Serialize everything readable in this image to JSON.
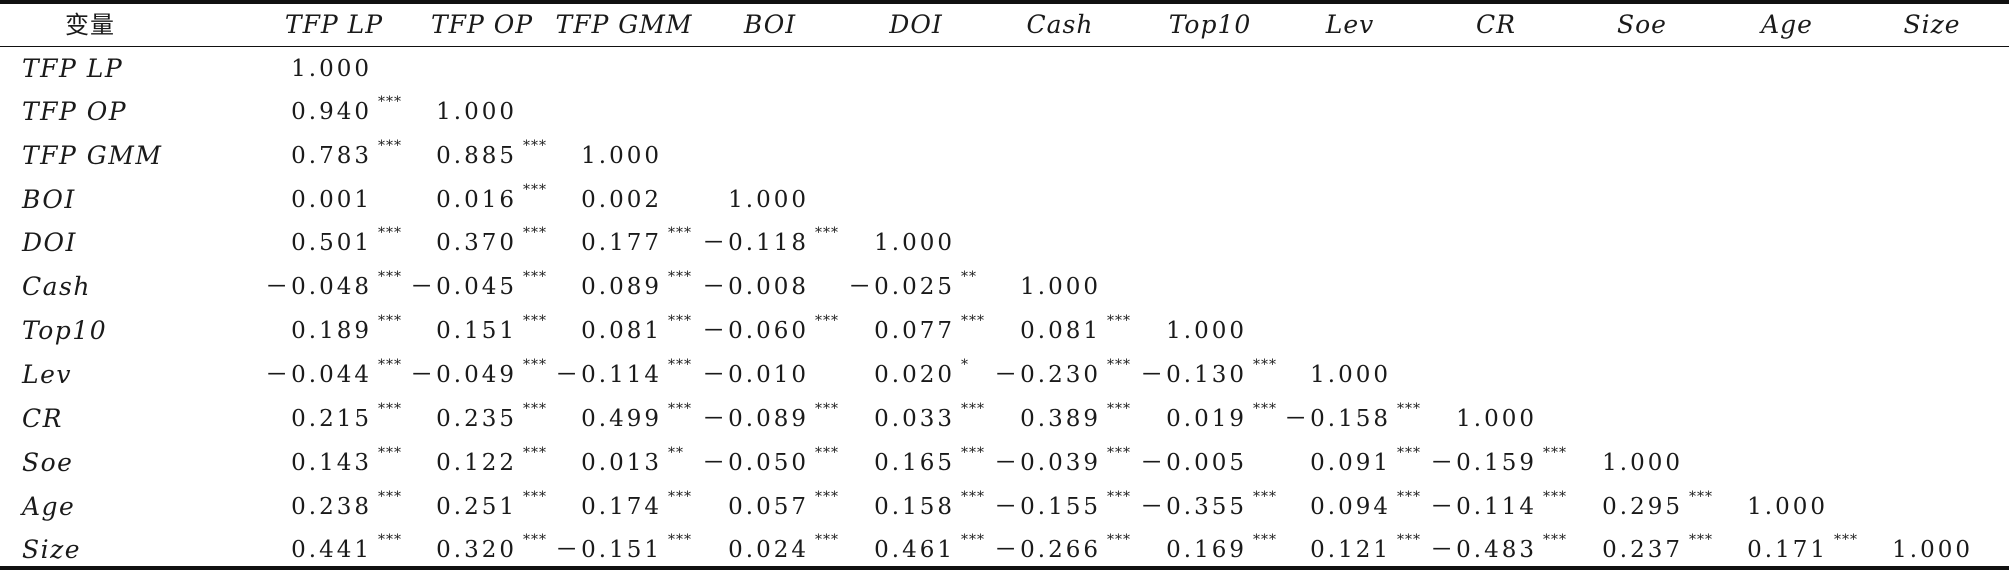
{
  "headers": [
    "变量",
    "TFP LP",
    "TFP OP",
    "TFP GMM",
    "BOI",
    "DOI",
    "Cash",
    "Top10",
    "Lev",
    "CR",
    "Soe",
    "Age",
    "Size"
  ],
  "rows": [
    {
      "label": "TFP LP",
      "cells": [
        [
          "1.000",
          ""
        ]
      ]
    },
    {
      "label": "TFP OP",
      "cells": [
        [
          "0.940",
          "***"
        ],
        [
          "1.000",
          ""
        ]
      ]
    },
    {
      "label": "TFP GMM",
      "cells": [
        [
          "0.783",
          "***"
        ],
        [
          "0.885",
          "***"
        ],
        [
          "1.000",
          ""
        ]
      ]
    },
    {
      "label": "BOI",
      "cells": [
        [
          "0.001",
          ""
        ],
        [
          "0.016",
          "***"
        ],
        [
          "0.002",
          ""
        ],
        [
          "1.000",
          ""
        ]
      ]
    },
    {
      "label": "DOI",
      "cells": [
        [
          "0.501",
          "***"
        ],
        [
          "0.370",
          "***"
        ],
        [
          "0.177",
          "***"
        ],
        [
          "－0.118",
          "***"
        ],
        [
          "1.000",
          ""
        ]
      ]
    },
    {
      "label": "Cash",
      "cells": [
        [
          "－0.048",
          "***"
        ],
        [
          "－0.045",
          "***"
        ],
        [
          "0.089",
          "***"
        ],
        [
          "－0.008",
          ""
        ],
        [
          "－0.025",
          "**"
        ],
        [
          "1.000",
          ""
        ]
      ]
    },
    {
      "label": "Top10",
      "cells": [
        [
          "0.189",
          "***"
        ],
        [
          "0.151",
          "***"
        ],
        [
          "0.081",
          "***"
        ],
        [
          "－0.060",
          "***"
        ],
        [
          "0.077",
          "***"
        ],
        [
          "0.081",
          "***"
        ],
        [
          "1.000",
          ""
        ]
      ]
    },
    {
      "label": "Lev",
      "cells": [
        [
          "－0.044",
          "***"
        ],
        [
          "－0.049",
          "***"
        ],
        [
          "－0.114",
          "***"
        ],
        [
          "－0.010",
          ""
        ],
        [
          "0.020",
          "*"
        ],
        [
          "－0.230",
          "***"
        ],
        [
          "－0.130",
          "***"
        ],
        [
          "1.000",
          ""
        ]
      ]
    },
    {
      "label": "CR",
      "cells": [
        [
          "0.215",
          "***"
        ],
        [
          "0.235",
          "***"
        ],
        [
          "0.499",
          "***"
        ],
        [
          "－0.089",
          "***"
        ],
        [
          "0.033",
          "***"
        ],
        [
          "0.389",
          "***"
        ],
        [
          "0.019",
          "***"
        ],
        [
          "－0.158",
          "***"
        ],
        [
          "1.000",
          ""
        ]
      ]
    },
    {
      "label": "Soe",
      "cells": [
        [
          "0.143",
          "***"
        ],
        [
          "0.122",
          "***"
        ],
        [
          "0.013",
          "**"
        ],
        [
          "－0.050",
          "***"
        ],
        [
          "0.165",
          "***"
        ],
        [
          "－0.039",
          "***"
        ],
        [
          "－0.005",
          ""
        ],
        [
          "0.091",
          "***"
        ],
        [
          "－0.159",
          "***"
        ],
        [
          "1.000",
          ""
        ]
      ]
    },
    {
      "label": "Age",
      "cells": [
        [
          "0.238",
          "***"
        ],
        [
          "0.251",
          "***"
        ],
        [
          "0.174",
          "***"
        ],
        [
          "0.057",
          "***"
        ],
        [
          "0.158",
          "***"
        ],
        [
          "－0.155",
          "***"
        ],
        [
          "－0.355",
          "***"
        ],
        [
          "0.094",
          "***"
        ],
        [
          "－0.114",
          "***"
        ],
        [
          "0.295",
          "***"
        ],
        [
          "1.000",
          ""
        ]
      ]
    },
    {
      "label": "Size",
      "cells": [
        [
          "0.441",
          "***"
        ],
        [
          "0.320",
          "***"
        ],
        [
          "－0.151",
          "***"
        ],
        [
          "0.024",
          "***"
        ],
        [
          "0.461",
          "***"
        ],
        [
          "－0.266",
          "***"
        ],
        [
          "0.169",
          "***"
        ],
        [
          "0.121",
          "***"
        ],
        [
          "－0.483",
          "***"
        ],
        [
          "0.237",
          "***"
        ],
        [
          "0.171",
          "***"
        ],
        [
          "1.000",
          ""
        ]
      ]
    }
  ]
}
